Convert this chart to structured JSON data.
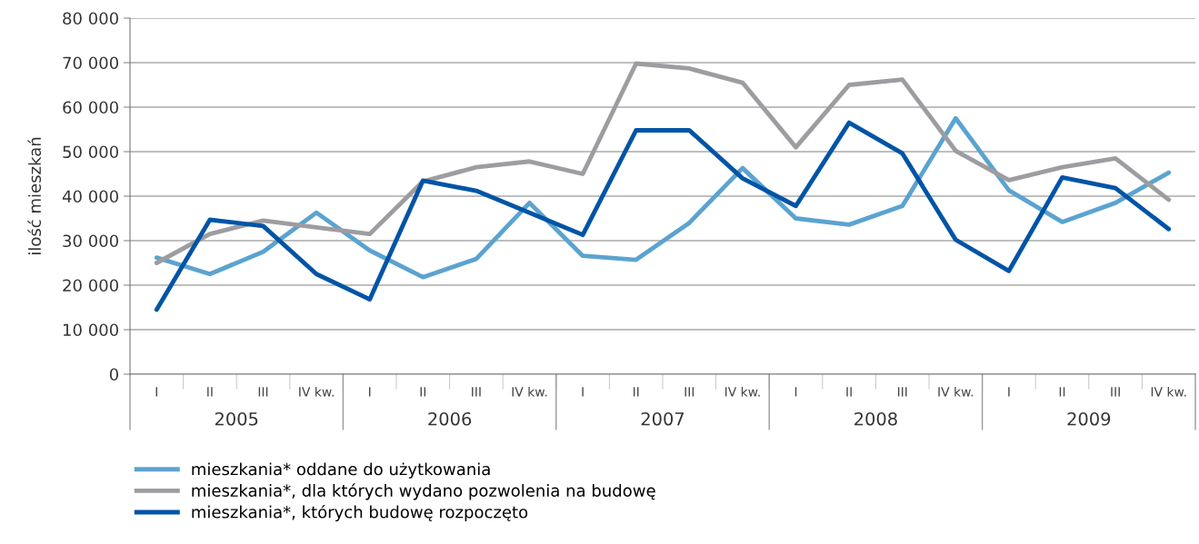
{
  "chart_data": {
    "type": "line",
    "ylabel": "ilość mieszkań",
    "categories": [
      "I",
      "II",
      "III",
      "IV kw.",
      "I",
      "II",
      "III",
      "IV kw.",
      "I",
      "II",
      "III",
      "IV kw.",
      "I",
      "II",
      "III",
      "IV kw.",
      "I",
      "II",
      "III",
      "IV kw."
    ],
    "annotations": [
      "2005",
      "2006",
      "2007",
      "2008",
      "2009"
    ],
    "series": [
      {
        "name": "mieszkania* oddane do użytkowania",
        "color": "#5ba3d0",
        "values": [
          26200,
          22500,
          27500,
          36300,
          27800,
          21800,
          25900,
          38500,
          26600,
          25700,
          34000,
          46300,
          35000,
          33600,
          37800,
          57500,
          41300,
          34200,
          38500,
          45300
        ]
      },
      {
        "name": "mieszkania*, dla których wydano pozwolenia na budowę",
        "color": "#9d9da1",
        "values": [
          25000,
          31500,
          34500,
          33000,
          31500,
          43300,
          46500,
          47800,
          45000,
          69800,
          68700,
          65500,
          51000,
          65000,
          66200,
          50200,
          43600,
          46500,
          48500,
          39200
        ]
      },
      {
        "name": "mieszkania*, których budowę rozpoczęto",
        "color": "#0054a6",
        "values": [
          14500,
          34700,
          33300,
          22500,
          16800,
          43500,
          41200,
          36300,
          31300,
          54800,
          54800,
          44000,
          37800,
          56500,
          49600,
          30200,
          23200,
          44200,
          41800,
          32600
        ]
      }
    ],
    "ylim": [
      0,
      80000
    ],
    "yticks": [
      0,
      {
        "value": 10000,
        "label": "10 000"
      },
      {
        "value": 20000,
        "label": "20 000"
      },
      {
        "value": 30000,
        "label": "30 000"
      },
      {
        "value": 40000,
        "label": "40 000"
      },
      {
        "value": 50000,
        "label": "50 000"
      },
      {
        "value": 60000,
        "label": "60 000"
      },
      {
        "value": 70000,
        "label": "70 000"
      },
      {
        "value": 80000,
        "label": "80 000"
      }
    ],
    "grid": "y",
    "legend": "bottom left",
    "marker": "none",
    "line_style": "solid"
  }
}
